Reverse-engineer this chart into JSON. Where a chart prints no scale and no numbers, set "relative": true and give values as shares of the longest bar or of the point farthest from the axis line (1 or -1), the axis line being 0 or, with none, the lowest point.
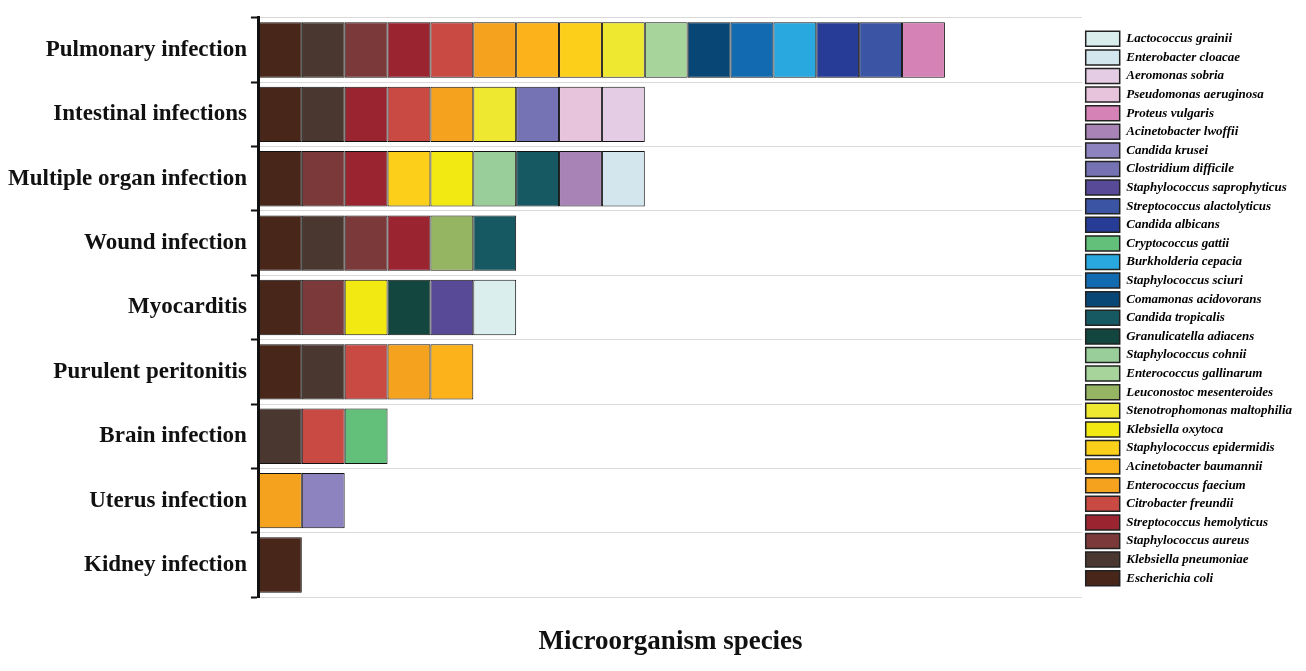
{
  "chart_data": {
    "type": "bar",
    "orientation": "horizontal",
    "stacked": true,
    "relative": true,
    "grid": "y",
    "legend": "right",
    "xlabel": "Microorganism species",
    "categories": [
      "Pulmonary infection",
      "Intestinal infections",
      "Multiple organ infection",
      "Wound infection",
      "Myocarditis",
      "Purulent peritonitis",
      "Brain infection",
      "Uterus infection",
      "Kidney infection"
    ],
    "series": [
      {
        "name": "Escherichia coli",
        "color": "#48261a",
        "values": [
          0.0625,
          0.0625,
          0.0625,
          0.0625,
          0.0625,
          0.0625,
          null,
          null,
          0.0625
        ]
      },
      {
        "name": "Klebsiella pneumoniae",
        "color": "#4a3830",
        "values": [
          0.0625,
          0.0625,
          null,
          0.0625,
          null,
          0.0625,
          0.0625,
          null,
          null
        ]
      },
      {
        "name": "Staphylococcus aureus",
        "color": "#7b3939",
        "values": [
          0.0625,
          null,
          0.0625,
          0.0625,
          0.0625,
          null,
          null,
          null,
          null
        ]
      },
      {
        "name": "Streptococcus hemolyticus",
        "color": "#9a2530",
        "values": [
          0.0625,
          0.0625,
          0.0625,
          0.0625,
          null,
          null,
          null,
          null,
          null
        ]
      },
      {
        "name": "Citrobacter freundii",
        "color": "#c84a42",
        "values": [
          0.0625,
          0.0625,
          null,
          null,
          null,
          0.0625,
          0.0625,
          null,
          null
        ]
      },
      {
        "name": "Enterococcus faecium",
        "color": "#f5a31f",
        "values": [
          0.0625,
          0.0625,
          null,
          null,
          null,
          0.0625,
          null,
          0.0625,
          null
        ]
      },
      {
        "name": "Acinetobacter baumannii",
        "color": "#fbb21b",
        "values": [
          0.0625,
          null,
          null,
          null,
          null,
          0.0625,
          null,
          null,
          null
        ]
      },
      {
        "name": "Staphylococcus epidermidis",
        "color": "#fccf1a",
        "values": [
          0.0625,
          null,
          0.0625,
          null,
          null,
          null,
          null,
          null,
          null
        ]
      },
      {
        "name": "Klebsiella oxytoca",
        "color": "#f2e912",
        "values": [
          null,
          null,
          0.0625,
          null,
          0.0625,
          null,
          null,
          null,
          null
        ]
      },
      {
        "name": "Stenotrophomonas maltophilia",
        "color": "#eee930",
        "values": [
          0.0625,
          0.0625,
          null,
          null,
          null,
          null,
          null,
          null,
          null
        ]
      },
      {
        "name": "Leuconostoc mesenteroides",
        "color": "#95b563",
        "values": [
          null,
          null,
          null,
          0.0625,
          null,
          null,
          null,
          null,
          null
        ]
      },
      {
        "name": "Enterococcus gallinarum",
        "color": "#a6d49b",
        "values": [
          0.0625,
          null,
          null,
          null,
          null,
          null,
          null,
          null,
          null
        ]
      },
      {
        "name": "Staphylococcus cohnii",
        "color": "#99cd99",
        "values": [
          null,
          null,
          0.0625,
          null,
          null,
          null,
          null,
          null,
          null
        ]
      },
      {
        "name": "Granulicatella adiacens",
        "color": "#12463f",
        "values": [
          null,
          null,
          null,
          null,
          0.0625,
          null,
          null,
          null,
          null
        ]
      },
      {
        "name": "Candida tropicalis",
        "color": "#165962",
        "values": [
          null,
          null,
          0.0625,
          0.0625,
          null,
          null,
          null,
          null,
          null
        ]
      },
      {
        "name": "Comamonas acidovorans",
        "color": "#084676",
        "values": [
          0.0625,
          null,
          null,
          null,
          null,
          null,
          null,
          null,
          null
        ]
      },
      {
        "name": "Staphylococcus sciuri",
        "color": "#126bb1",
        "values": [
          0.0625,
          null,
          null,
          null,
          null,
          null,
          null,
          null,
          null
        ]
      },
      {
        "name": "Burkholderia cepacia",
        "color": "#29a8e0",
        "values": [
          0.0625,
          null,
          null,
          null,
          null,
          null,
          null,
          null,
          null
        ]
      },
      {
        "name": "Cryptococcus gattii",
        "color": "#62c07a",
        "values": [
          null,
          null,
          null,
          null,
          null,
          null,
          0.0625,
          null,
          null
        ]
      },
      {
        "name": "Candida albicans",
        "color": "#273c96",
        "values": [
          0.0625,
          null,
          null,
          null,
          null,
          null,
          null,
          null,
          null
        ]
      },
      {
        "name": "Streptococcus alactolyticus",
        "color": "#3b55a4",
        "values": [
          0.0625,
          null,
          null,
          null,
          null,
          null,
          null,
          null,
          null
        ]
      },
      {
        "name": "Staphylococcus saprophyticus",
        "color": "#584a96",
        "values": [
          null,
          null,
          null,
          null,
          0.0625,
          null,
          null,
          null,
          null
        ]
      },
      {
        "name": "Clostridium difficile",
        "color": "#7573b4",
        "values": [
          null,
          0.0625,
          null,
          null,
          null,
          null,
          null,
          null,
          null
        ]
      },
      {
        "name": "Candida krusei",
        "color": "#8c83bf",
        "values": [
          null,
          null,
          null,
          null,
          null,
          null,
          null,
          0.0625,
          null
        ]
      },
      {
        "name": "Acinetobacter lwoffii",
        "color": "#a883b5",
        "values": [
          null,
          null,
          0.0625,
          null,
          null,
          null,
          null,
          null,
          null
        ]
      },
      {
        "name": "Proteus vulgaris",
        "color": "#d583b6",
        "values": [
          0.0625,
          null,
          null,
          null,
          null,
          null,
          null,
          null,
          null
        ]
      },
      {
        "name": "Pseudomonas aeruginosa",
        "color": "#e7c4dc",
        "values": [
          null,
          0.0625,
          null,
          null,
          null,
          null,
          null,
          null,
          null
        ]
      },
      {
        "name": "Aeromonas sobria",
        "color": "#e4cde4",
        "values": [
          null,
          0.0625,
          null,
          null,
          null,
          null,
          null,
          null,
          null
        ]
      },
      {
        "name": "Enterobacter cloacae",
        "color": "#d3e6ed",
        "values": [
          null,
          null,
          0.0625,
          null,
          null,
          null,
          null,
          null,
          null
        ]
      },
      {
        "name": "Lactococcus grainii",
        "color": "#dbeeee",
        "values": [
          null,
          null,
          null,
          null,
          0.0625,
          null,
          null,
          null,
          null
        ]
      }
    ]
  }
}
